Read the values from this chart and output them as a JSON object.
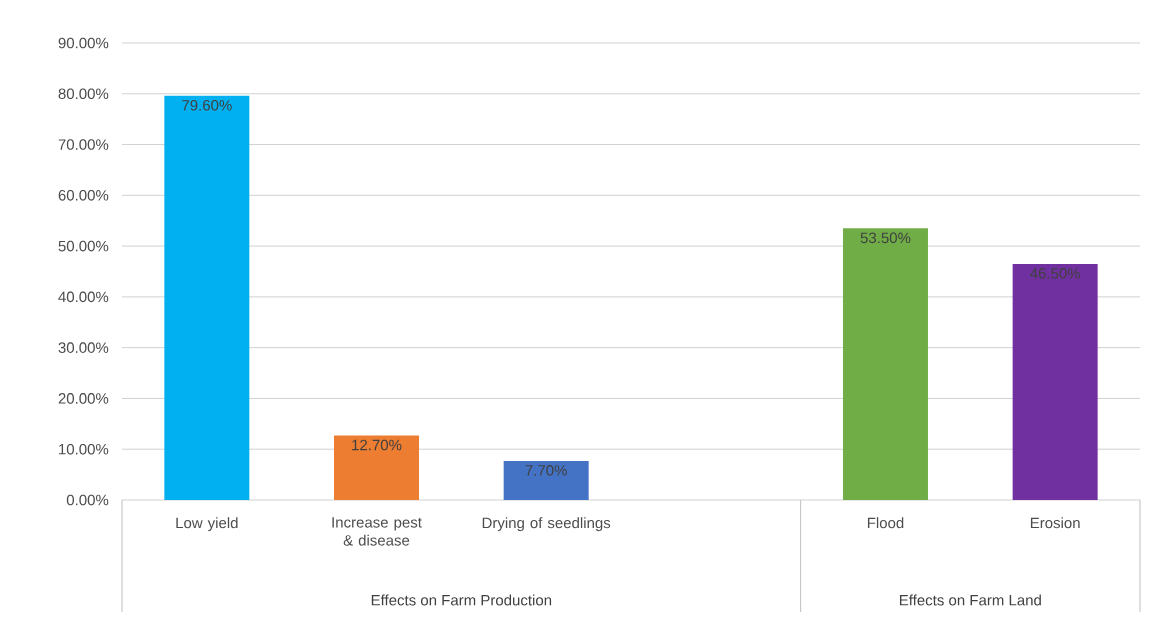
{
  "chart_data": {
    "type": "bar",
    "categories": [
      "Low yield",
      "Increase pest & disease",
      "Drying of seedlings",
      null,
      "Flood",
      "Erosion"
    ],
    "values": [
      79.6,
      12.7,
      7.7,
      null,
      53.5,
      46.5
    ],
    "colors": [
      "#00b0f0",
      "#ed7d31",
      "#4472c4",
      null,
      "#70ad47",
      "#7030a0"
    ],
    "value_labels": [
      "79.60%",
      "12.70%",
      "7.70%",
      null,
      "53.50%",
      "46.50%"
    ],
    "ylim": [
      0,
      90
    ],
    "yticks": [
      {
        "value": 0,
        "label": "0.00%"
      },
      {
        "value": 10,
        "label": "10.00%"
      },
      {
        "value": 20,
        "label": "20.00%"
      },
      {
        "value": 30,
        "label": "30.00%"
      },
      {
        "value": 40,
        "label": "40.00%"
      },
      {
        "value": 50,
        "label": "50.00%"
      },
      {
        "value": 60,
        "label": "60.00%"
      },
      {
        "value": 70,
        "label": "70.00%"
      },
      {
        "value": 80,
        "label": "80.00%"
      },
      {
        "value": 90,
        "label": "90.00%"
      }
    ],
    "grid": "y",
    "annotations": [
      "Effects on Farm Production",
      "Effects on Farm Land"
    ]
  }
}
